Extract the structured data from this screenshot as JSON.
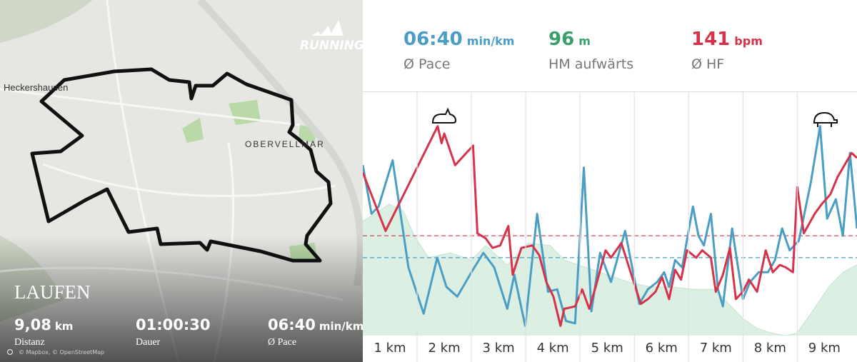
{
  "map": {
    "brand": "RUNNING",
    "places": [
      "Heckershausen",
      "OBERVELLMAR"
    ],
    "activity": "LAUFEN",
    "stats": [
      {
        "value": "9,08",
        "unit": "km",
        "label": "Distanz"
      },
      {
        "value": "01:00:30",
        "label": "Dauer"
      },
      {
        "value": "06:40",
        "unit": "min/km",
        "label": "Ø Pace"
      }
    ],
    "attribution": "© Mapbox, © OpenStreetMap"
  },
  "header_stats": [
    {
      "value": "06:40",
      "unit": "min/km",
      "label": "Ø Pace",
      "color": "#4a9ec4"
    },
    {
      "value": 96,
      "unit": "m",
      "label": "HM aufwärts",
      "color": "#3aa06a"
    },
    {
      "value": 141,
      "unit": "bpm",
      "label": "Ø HF",
      "color": "#d6334b"
    }
  ],
  "chart_data": {
    "type": "line",
    "xlim": [
      0.5,
      9.6
    ],
    "ylim": [
      0,
      100
    ],
    "xticks": [
      {
        "value": 1,
        "label": "1 km"
      },
      {
        "value": 2,
        "label": "2 km"
      },
      {
        "value": 3,
        "label": "3 km"
      },
      {
        "value": 4,
        "label": "4 km"
      },
      {
        "value": 5,
        "label": "5 km"
      },
      {
        "value": 6,
        "label": "6 km"
      },
      {
        "value": 7,
        "label": "7 km"
      },
      {
        "value": 8,
        "label": "8 km"
      },
      {
        "value": 9,
        "label": "9 km"
      }
    ],
    "xgrid": [
      1.5,
      2.5,
      3.5,
      4.5,
      5.5,
      6.5,
      7.5,
      8.5
    ],
    "series": [
      {
        "type": "area",
        "color": "#dcefe3",
        "x": [
          0.5,
          0.72,
          0.99,
          1.25,
          1.45,
          1.71,
          2.11,
          2.5,
          2.76,
          3.16,
          3.55,
          3.95,
          4.21,
          4.61,
          5.0,
          5.39,
          5.79,
          6.18,
          6.58,
          6.97,
          7.24,
          7.5,
          7.76,
          8.03,
          8.29,
          8.49,
          8.75,
          9.08,
          9.34,
          9.6
        ],
        "values": [
          47,
          50,
          54,
          51,
          41,
          32,
          34,
          31,
          37,
          29,
          38,
          37,
          31,
          28,
          25,
          22,
          20,
          20,
          19,
          19,
          13,
          7,
          3,
          1,
          0,
          1,
          9,
          20,
          26,
          29
        ]
      },
      {
        "type": "line",
        "color": "#4a9ec4",
        "average": 32,
        "x": [
          0.5,
          0.66,
          0.79,
          1.05,
          1.34,
          1.62,
          1.87,
          2.04,
          2.24,
          2.5,
          2.72,
          2.92,
          3.16,
          3.29,
          3.49,
          3.71,
          3.91,
          4.08,
          4.24,
          4.41,
          4.57,
          4.71,
          4.87,
          5.07,
          5.33,
          5.59,
          5.75,
          5.92,
          6.05,
          6.14,
          6.25,
          6.38,
          6.58,
          6.68,
          6.78,
          6.91,
          7.04,
          7.13,
          7.3,
          7.5,
          7.63,
          7.79,
          7.96,
          8.09,
          8.22,
          8.36,
          8.53,
          8.75,
          8.92,
          9.05,
          9.21,
          9.34,
          9.47,
          9.6
        ],
        "values": [
          70,
          50,
          53,
          72,
          28,
          9,
          32,
          20,
          16,
          26,
          34,
          28,
          11,
          25,
          4,
          50,
          18,
          19,
          6,
          5,
          69,
          10,
          34,
          22,
          43,
          13,
          19,
          22,
          26,
          20,
          31,
          28,
          53,
          41,
          37,
          50,
          19,
          12,
          44,
          15,
          22,
          26,
          26,
          31,
          44,
          35,
          39,
          63,
          86,
          48,
          56,
          41,
          75,
          44
        ]
      },
      {
        "type": "line",
        "color": "#d6334b",
        "average": 41,
        "x": [
          0.5,
          0.92,
          1.88,
          1.95,
          2.0,
          2.2,
          2.53,
          2.61,
          2.76,
          2.89,
          3.03,
          3.18,
          3.26,
          3.42,
          3.62,
          3.75,
          3.88,
          4.01,
          4.14,
          4.21,
          4.41,
          4.54,
          4.67,
          4.8,
          4.97,
          5.07,
          5.26,
          5.46,
          5.62,
          5.75,
          5.89,
          6.01,
          6.14,
          6.25,
          6.36,
          6.47,
          6.64,
          6.75,
          6.91,
          7.0,
          7.13,
          7.26,
          7.37,
          7.5,
          7.61,
          7.76,
          7.92,
          8.05,
          8.18,
          8.29,
          8.42,
          8.5,
          8.62,
          8.82,
          8.95,
          9.11,
          9.24,
          9.37,
          9.5,
          9.6
        ],
        "values": [
          67,
          43,
          86,
          79,
          83,
          70,
          78,
          42,
          40,
          36,
          37,
          45,
          25,
          36,
          37,
          33,
          22,
          16,
          4,
          11,
          12,
          19,
          11,
          21,
          35,
          32,
          38,
          24,
          13,
          15,
          18,
          24,
          15,
          27,
          23,
          35,
          32,
          35,
          32,
          18,
          25,
          36,
          15,
          18,
          23,
          18,
          35,
          26,
          29,
          28,
          26,
          61,
          42,
          50,
          54,
          58,
          65,
          70,
          75,
          73
        ]
      }
    ]
  }
}
